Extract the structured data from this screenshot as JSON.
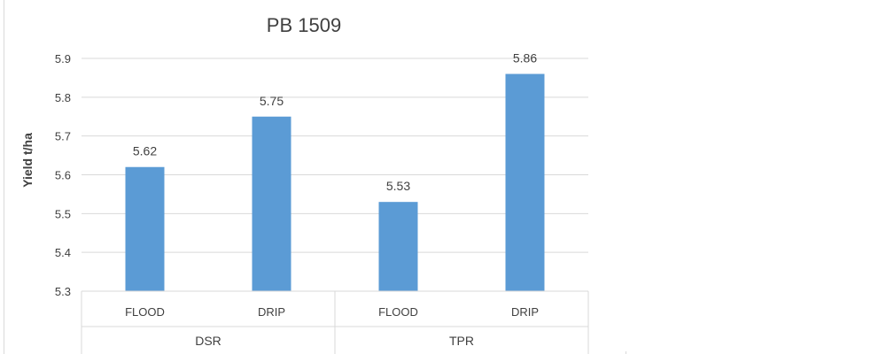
{
  "chart_data": {
    "type": "bar",
    "title": "PB 1509",
    "xlabel": "",
    "ylabel": "Yield t/ha",
    "ylim": [
      5.3,
      5.9
    ],
    "yticks": [
      5.3,
      5.4,
      5.5,
      5.6,
      5.7,
      5.8,
      5.9
    ],
    "ytick_labels": [
      "5.3",
      "5.4",
      "5.5",
      "5.6",
      "5.7",
      "5.8",
      "5.9"
    ],
    "grid": true,
    "legend": "none",
    "bar_color": "#5b9bd5",
    "groups": [
      {
        "label": "DSR",
        "categories": [
          "FLOOD",
          "DRIP"
        ]
      },
      {
        "label": "TPR",
        "categories": [
          "FLOOD",
          "DRIP"
        ]
      }
    ],
    "categories": [
      "FLOOD",
      "DRIP",
      "FLOOD",
      "DRIP"
    ],
    "values": [
      5.62,
      5.75,
      5.53,
      5.86
    ],
    "data_labels": [
      "5.62",
      "5.75",
      "5.53",
      "5.86"
    ]
  }
}
